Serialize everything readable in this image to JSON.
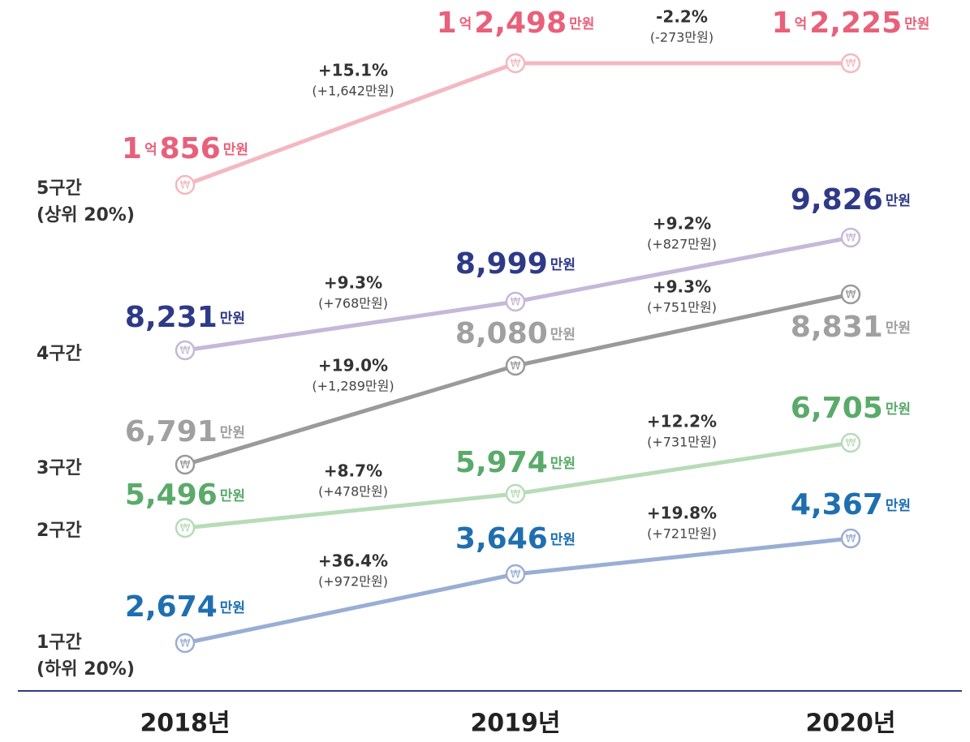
{
  "groups": [
    {
      "name": [
        "1구간",
        "(하위 20%)"
      ],
      "color": "#9aaed4",
      "label_color": "#1f6fb0",
      "points": [
        [
          "2,674",
          "만원"
        ],
        [
          "3,646",
          "만원"
        ],
        [
          "4,367",
          "만원"
        ]
      ],
      "changes": [
        {
          "pct": "+36.4%",
          "amount": "(+972만원)"
        },
        {
          "pct": "+19.8%",
          "amount": "(+721만원)"
        }
      ]
    },
    {
      "name": [
        "2구간"
      ],
      "color": "#b8dbb8",
      "label_color": "#5aaa6a",
      "points": [
        [
          "5,496",
          "만원"
        ],
        [
          "5,974",
          "만원"
        ],
        [
          "6,705",
          "만원"
        ]
      ],
      "changes": [
        {
          "pct": "+8.7%",
          "amount": "(+478만원)"
        },
        {
          "pct": "+12.2%",
          "amount": "(+731만원)"
        }
      ]
    },
    {
      "name": [
        "3구간"
      ],
      "color": "#9a9a9a",
      "label_color": "#a0a0a0",
      "points": [
        [
          "6,791",
          "만원"
        ],
        [
          "8,080",
          "만원"
        ],
        [
          "8,831",
          "만원"
        ]
      ],
      "changes": [
        {
          "pct": "+19.0%",
          "amount": "(+1,289만원)"
        },
        {
          "pct": "+9.3%",
          "amount": "(+751만원)"
        }
      ]
    },
    {
      "name": [
        "4구간"
      ],
      "color": "#c5b8d8",
      "label_color": "#2e3a87",
      "points": [
        [
          "8,231",
          "만원"
        ],
        [
          "8,999",
          "만원"
        ],
        [
          "9,826",
          "만원"
        ]
      ],
      "changes": [
        {
          "pct": "+9.3%",
          "amount": "(+768만원)"
        },
        {
          "pct": "+9.2%",
          "amount": "(+827만원)"
        }
      ]
    },
    {
      "name": [
        "5구간",
        "(상위 20%)"
      ],
      "color": "#f4b8c0",
      "label_color": "#e8607a",
      "points": [
        [
          "1",
          "억",
          "856",
          "만원"
        ],
        [
          "1",
          "억",
          "2,498",
          "만원"
        ],
        [
          "1",
          "억",
          "2,225",
          "만원"
        ]
      ],
      "changes": [
        {
          "pct": "+15.1%",
          "amount": "(+1,642만원)"
        },
        {
          "pct": "-2.2%",
          "amount": "(-273만원)"
        }
      ]
    }
  ],
  "years": [
    "2018년",
    "2019년",
    "2020년"
  ],
  "currency_icon": "₩"
}
